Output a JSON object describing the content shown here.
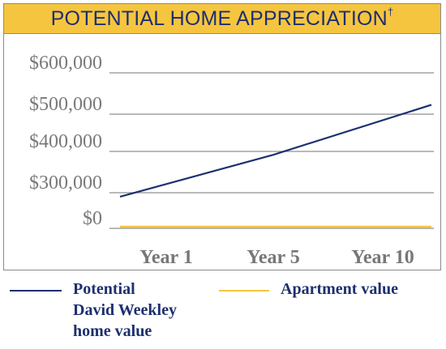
{
  "chart_data": {
    "type": "line",
    "title": "POTENTIAL HOME APPRECIATION",
    "title_mark": "†",
    "categories": [
      "Year 1",
      "Year 5",
      "Year 10"
    ],
    "y_ticks": [
      "$600,000",
      "$500,000",
      "$400,000",
      "$300,000",
      "$0"
    ],
    "series": [
      {
        "name": "Potential David Weekley home value",
        "name_lines": [
          "Potential",
          "David Weekley",
          "home value"
        ],
        "color": "#1d2f6f",
        "values": [
          290000,
          395000,
          520000
        ]
      },
      {
        "name": "Apartment value",
        "color": "#f6c53f",
        "values": [
          0,
          0,
          0
        ]
      }
    ],
    "grid": true,
    "legend_position": "bottom"
  }
}
